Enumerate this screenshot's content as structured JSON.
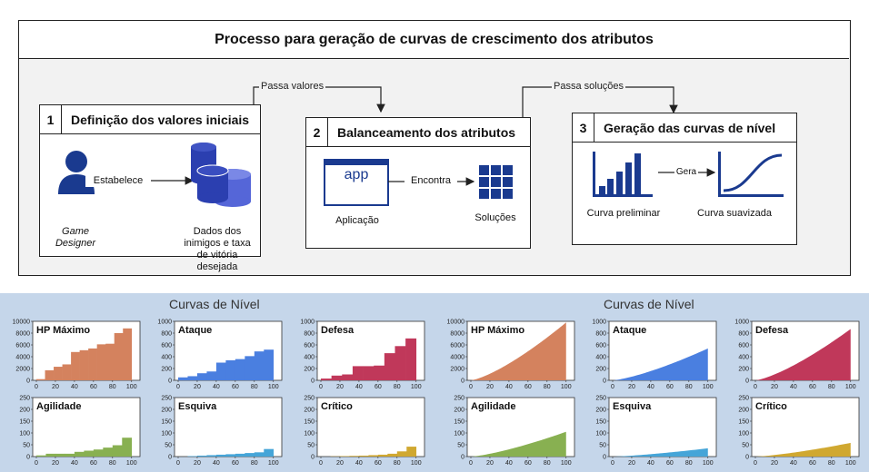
{
  "diagram": {
    "title": "Processo para geração de curvas de crescimento dos atributos",
    "steps": [
      {
        "num": "1",
        "title": "Definição dos valores iniciais"
      },
      {
        "num": "2",
        "title": "Balanceamento dos atributos"
      },
      {
        "num": "3",
        "title": "Geração das curvas de nível"
      }
    ],
    "connectors": {
      "passa_valores": "Passa valores",
      "passa_solucoes": "Passa soluções"
    },
    "step1": {
      "actor": "Game Designer",
      "action": "Estabelece",
      "data_label": "Dados dos inimigos e taxa de vitória desejada"
    },
    "step2": {
      "app_text": "app",
      "app_label": "Aplicação",
      "action": "Encontra",
      "result_label": "Soluções"
    },
    "step3": {
      "preliminary_label": "Curva preliminar",
      "action": "Gera",
      "smooth_label": "Curva suavizada"
    },
    "colors": {
      "icon_blue": "#1a3a8f",
      "db_blue": "#2b3fb0",
      "db_light": "#5566d8"
    }
  },
  "panels": [
    {
      "title": "Curvas de Nível",
      "mode": "step"
    },
    {
      "title": "Curvas de Nível",
      "mode": "smooth"
    }
  ],
  "chart_data": [
    {
      "type": "bar",
      "name": "HP Máximo",
      "color": "#d4825e",
      "ylim": [
        0,
        10000
      ],
      "yticks": [
        0,
        2000,
        4000,
        6000,
        8000,
        10000
      ],
      "xticks": [
        0,
        20,
        40,
        60,
        80,
        100
      ],
      "step_values": [
        200,
        1700,
        2300,
        2700,
        4800,
        5100,
        5400,
        6100,
        6200,
        8000,
        8800
      ],
      "smooth_end": 9800
    },
    {
      "type": "bar",
      "name": "Ataque",
      "color": "#4a7fe0",
      "ylim": [
        0,
        1000
      ],
      "yticks": [
        0,
        200,
        400,
        600,
        800,
        1000
      ],
      "xticks": [
        0,
        20,
        40,
        60,
        80,
        100
      ],
      "step_values": [
        50,
        70,
        120,
        150,
        300,
        340,
        360,
        410,
        490,
        520
      ],
      "smooth_end": 540
    },
    {
      "type": "bar",
      "name": "Defesa",
      "color": "#c0385a",
      "ylim": [
        0,
        1000
      ],
      "yticks": [
        0,
        200,
        400,
        600,
        800,
        1000
      ],
      "xticks": [
        0,
        20,
        40,
        60,
        80,
        100
      ],
      "step_values": [
        30,
        80,
        100,
        240,
        240,
        250,
        460,
        580,
        710
      ],
      "smooth_end": 870
    },
    {
      "type": "bar",
      "name": "Agilidade",
      "color": "#88b051",
      "ylim": [
        0,
        250
      ],
      "yticks": [
        0,
        50,
        100,
        150,
        200,
        250
      ],
      "xticks": [
        0,
        20,
        40,
        60,
        80,
        100
      ],
      "step_values": [
        5,
        12,
        12,
        12,
        20,
        25,
        30,
        38,
        48,
        80
      ],
      "smooth_end": 105
    },
    {
      "type": "bar",
      "name": "Esquiva",
      "color": "#45a5d8",
      "ylim": [
        0,
        250
      ],
      "yticks": [
        0,
        50,
        100,
        150,
        200,
        250
      ],
      "xticks": [
        0,
        20,
        40,
        60,
        80,
        100
      ],
      "step_values": [
        0,
        2,
        4,
        6,
        8,
        10,
        12,
        15,
        18,
        32
      ],
      "smooth_end": 35
    },
    {
      "type": "bar",
      "name": "Crítico",
      "color": "#d0a830",
      "ylim": [
        0,
        250
      ],
      "yticks": [
        0,
        50,
        100,
        150,
        200,
        250
      ],
      "xticks": [
        0,
        20,
        40,
        60,
        80,
        100
      ],
      "step_values": [
        0,
        1,
        2,
        3,
        4,
        6,
        8,
        12,
        22,
        42
      ],
      "smooth_end": 58
    }
  ]
}
